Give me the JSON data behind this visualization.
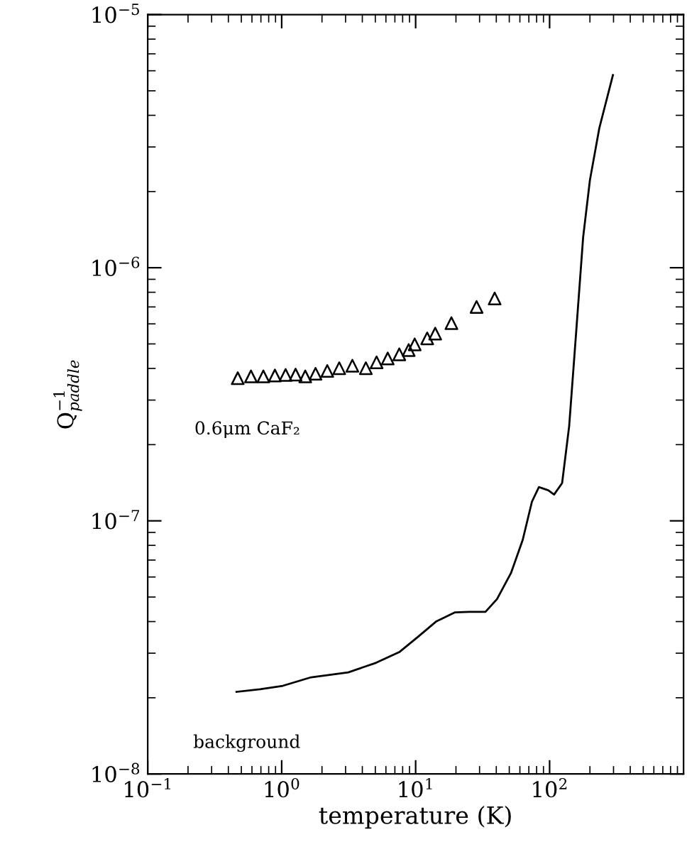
{
  "chart_data": {
    "type": "line",
    "xlabel": "temperature (K)",
    "ylabel": "Q$^{−1}$$_{paddle}$",
    "log": "xy",
    "legend": false,
    "grid": false,
    "xlim": [
      0.1,
      1000
    ],
    "xticks": [
      {
        "value": 0.1,
        "label": "10$^{−1}$"
      },
      {
        "value": 1,
        "label": "10$^{0}$"
      },
      {
        "value": 10,
        "label": "10$^{1}$"
      },
      {
        "value": 100,
        "label": "10$^{2}$"
      }
    ],
    "ylim": [
      1e-08,
      1e-05
    ],
    "yticks": [
      {
        "value": 1e-08,
        "label": "10$^{−8}$"
      },
      {
        "value": 1e-07,
        "label": "10$^{−7}$"
      },
      {
        "value": 1e-06,
        "label": "10$^{−6}$"
      },
      {
        "value": 1e-05,
        "label": "10$^{−5}$"
      }
    ],
    "series": [
      {
        "name": "0.6μm CaF₂",
        "type": "scatter",
        "marker": "triangle",
        "color": "#000000",
        "x": [
          0.47,
          0.59,
          0.73,
          0.89,
          1.07,
          1.27,
          1.5,
          1.79,
          2.19,
          2.69,
          3.37,
          4.25,
          5.11,
          6.19,
          7.55,
          8.87,
          9.84,
          12.2,
          14.0,
          18.5,
          28.5,
          38.9
        ],
        "values": [
          3.66e-07,
          3.72e-07,
          3.72e-07,
          3.75e-07,
          3.77e-07,
          3.78e-07,
          3.72e-07,
          3.81e-07,
          3.91e-07,
          4.01e-07,
          4.1e-07,
          4.01e-07,
          4.23e-07,
          4.38e-07,
          4.55e-07,
          4.73e-07,
          4.98e-07,
          5.26e-07,
          5.49e-07,
          6.04e-07,
          7e-07,
          7.56e-07
        ]
      },
      {
        "name": "background",
        "line_style": "solid",
        "color": "#000000",
        "x": [
          0.46,
          0.69,
          1.02,
          1.66,
          3.14,
          5.07,
          7.55,
          10.4,
          14.3,
          19.7,
          25.1,
          33.2,
          40.5,
          51.5,
          63.0,
          73.8,
          83.2,
          97.7,
          108,
          124,
          140,
          158,
          178,
          200,
          235,
          297
        ],
        "values": [
          2.11e-08,
          2.16e-08,
          2.23e-08,
          2.41e-08,
          2.52e-08,
          2.75e-08,
          3.03e-08,
          3.48e-08,
          4.01e-08,
          4.35e-08,
          4.37e-08,
          4.37e-08,
          4.91e-08,
          6.22e-08,
          8.41e-08,
          1.19e-07,
          1.36e-07,
          1.32e-07,
          1.27e-07,
          1.41e-07,
          2.37e-07,
          5.6e-07,
          1.32e-06,
          2.22e-06,
          3.56e-06,
          5.77e-06
        ]
      }
    ]
  }
}
